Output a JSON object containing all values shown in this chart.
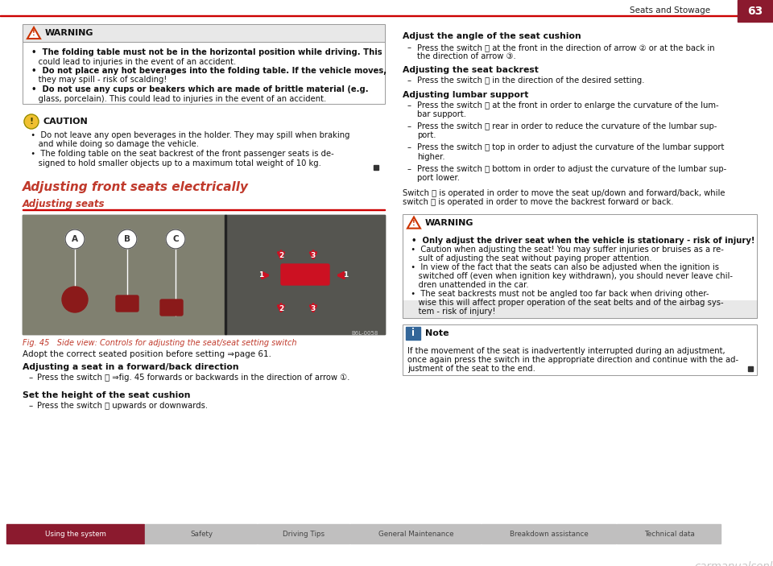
{
  "page_title": "Seats and Stowage",
  "page_number": "63",
  "background_color": "#ffffff",
  "header_line_color": "#cc0000",
  "red_color": "#8b1a2e",
  "nav_bar_active_bg": "#8b1a2e",
  "nav_bar_inactive_bg": "#c0bfbf",
  "nav_bar_text_color_active": "#ffffff",
  "nav_bar_text_color_inactive": "#444444",
  "nav_items": [
    "Using the system",
    "Safety",
    "Driving Tips",
    "General Maintenance",
    "Breakdown assistance",
    "Technical data"
  ],
  "section_title": "Adjusting front seats electrically",
  "section_title_color": "#c0392b",
  "subsection_title": "Adjusting seats",
  "subsection_title_color": "#c0392b",
  "warning_title": "WARNING",
  "warning_bg": "#f5f5f5",
  "warning1_bullets": [
    "The folding table must not be in the horizontal position while driving. This could lead to injuries in the event of an accident.",
    "Do not place any hot beverages into the folding table. If the vehicle moves, they may spill - risk of scalding!",
    "Do not use any cups or beakers which are made of brittle material (e.g. glass, porcelain). This could lead to injuries in the event of an accident."
  ],
  "caution_title": "CAUTION",
  "caution_bullets": [
    "Do not leave any open beverages in the holder. They may spill when braking and while doing so damage the vehicle.",
    "The folding table on the seat backrest of the front passenger seats is de-signed to hold smaller objects up to a maximum total weight of 10 kg."
  ],
  "fig_caption": "Fig. 45   Side view: Controls for adjusting the seat/seat setting switch",
  "adopt_text": "Adopt the correct seated position before setting ⇒page 61.",
  "forward_back_title": "Adjusting a seat in a forward/back direction",
  "forward_back_text": "Press the switch Ⓑ ⇒fig. 45 forwards or backwards in the direction of arrow ①.",
  "height_title": "Set the height of the seat cushion",
  "height_text": "Press the switch Ⓑ upwards or downwards.",
  "right_col_head1": "Adjust the angle of the seat cushion",
  "right_col_text1a": "Press the switch Ⓑ at the front in the direction of arrow ② or at the back in",
  "right_col_text1b": "the direction of arrow ③.",
  "right_col_head2": "Adjusting the seat backrest",
  "right_col_text2": "Press the switch Ⓒ in the direction of the desired setting.",
  "right_col_head3": "Adjusting lumbar support",
  "lumbar_items": [
    [
      "Press the switch Ⓚ at the front in order to enlarge the curvature of the lum-",
      "bar support."
    ],
    [
      "Press the switch Ⓚ rear in order to reduce the curvature of the lumbar sup-",
      "port."
    ],
    [
      "Press the switch Ⓚ top in order to adjust the curvature of the lumbar support",
      "higher."
    ],
    [
      "Press the switch Ⓚ bottom in order to adjust the curvature of the lumbar sup-",
      "port lower."
    ]
  ],
  "switch_text1": "Switch Ⓑ is operated in order to move the seat up/down and forward/back, while",
  "switch_text2": "switch Ⓒ is operated in order to move the backrest forward or back.",
  "warning2_bullets": [
    [
      "Only adjust the driver seat when the vehicle is stationary - risk of injury!"
    ],
    [
      "Caution when adjusting the seat! You may suffer injuries or bruises as a re-",
      "sult of adjusting the seat without paying proper attention."
    ],
    [
      "In view of the fact that the seats can also be adjusted when the ignition is",
      "switched off (even when ignition key withdrawn), you should never leave chil-",
      "dren unattended in the car."
    ],
    [
      "The seat backrests must not be angled too far back when driving other-",
      "wise this will affect proper operation of the seat belts and of the airbag sys-",
      "tem - risk of injury!"
    ]
  ],
  "note_title": "Note",
  "note_lines": [
    "If the movement of the seat is inadvertently interrupted during an adjustment,",
    "once again press the switch in the appropriate direction and continue with the ad-",
    "justment of the seat to the end."
  ]
}
